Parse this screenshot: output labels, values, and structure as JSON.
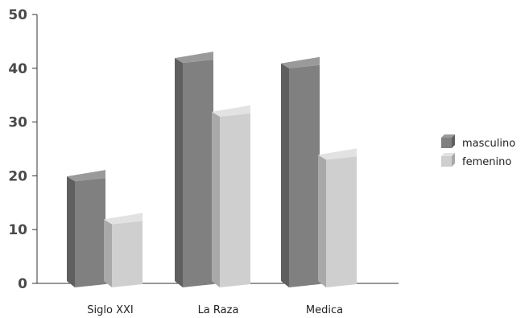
{
  "chart_data": {
    "type": "bar",
    "title": "",
    "xlabel": "",
    "ylabel": "",
    "categories": [
      "Siglo XXI",
      "La Raza",
      "Medica"
    ],
    "series": [
      {
        "name": "masculino",
        "values": [
          19,
          41,
          40
        ]
      },
      {
        "name": "femenino",
        "values": [
          11,
          31,
          23
        ]
      }
    ],
    "ylim": [
      0,
      50
    ],
    "yticks": [
      "0",
      "10",
      "20",
      "30",
      "40",
      "50"
    ],
    "legend_position": "right",
    "grid": false,
    "style": "3d",
    "colors": {
      "masculino_front": "#808080",
      "masculino_side": "#5f5f5f",
      "masculino_top": "#9a9a9a",
      "femenino_front": "#cfcfcf",
      "femenino_side": "#a9a9a9",
      "femenino_top": "#e2e2e2",
      "axis": "#333333"
    }
  }
}
